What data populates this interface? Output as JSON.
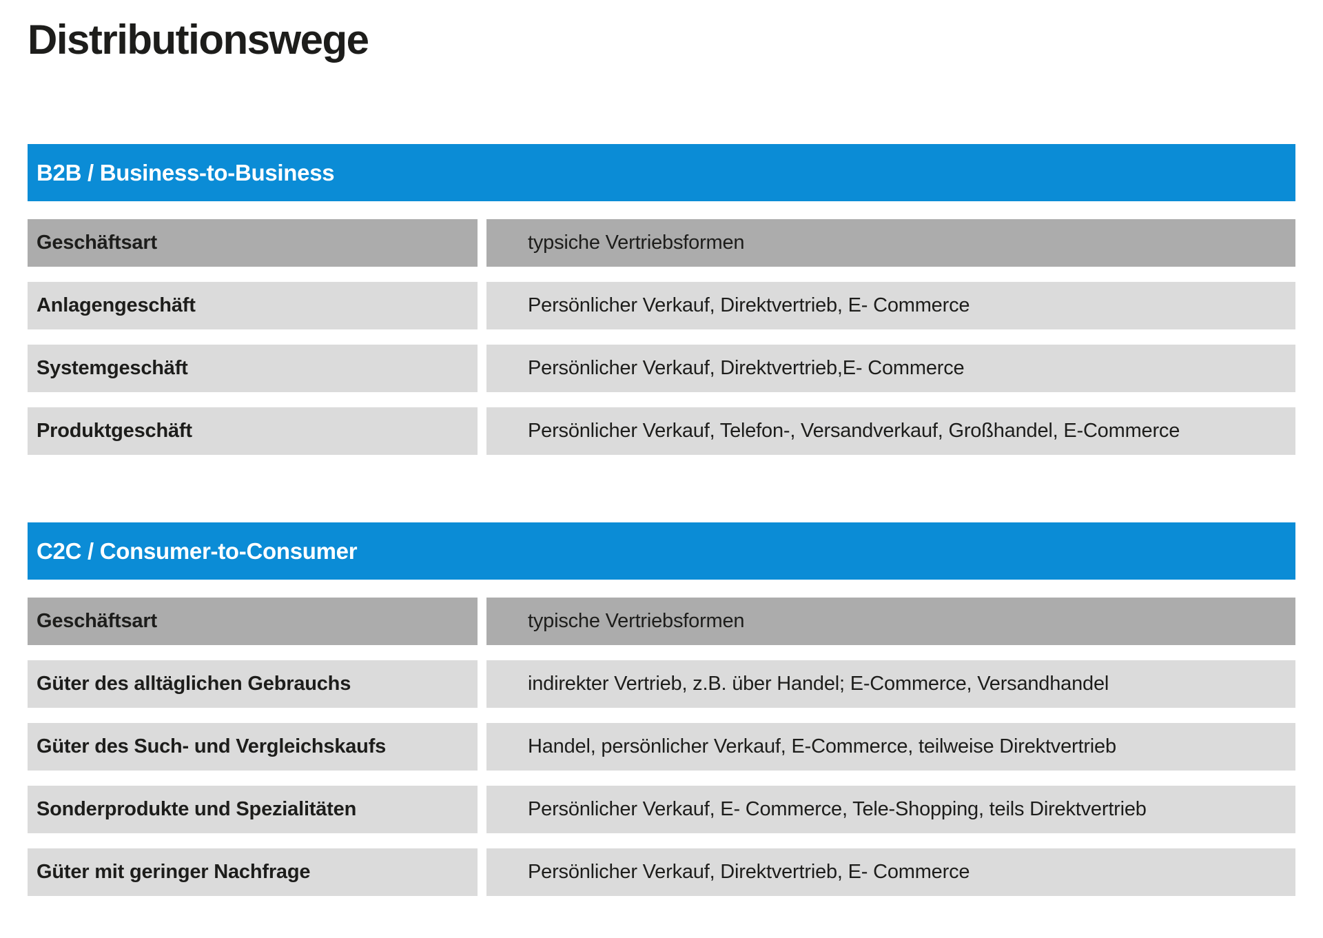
{
  "title": "Distributionswege",
  "colors": {
    "accent_blue": "#0b8cd6",
    "header_row_gray": "#acacac",
    "data_row_gray": "#dbdbdb",
    "text_black": "#1d1d1b",
    "bar_text_white": "#ffffff"
  },
  "sections": [
    {
      "header": "B2B / Business-to-Business",
      "col1_header": "Geschäftsart",
      "col2_header": "typsiche Vertriebsformen",
      "rows": [
        {
          "label": "Anlagengeschäft",
          "value": "Persönlicher Verkauf, Direktvertrieb, E- Commerce"
        },
        {
          "label": "Systemgeschäft",
          "value": "Persönlicher Verkauf, Direktvertrieb,E- Commerce"
        },
        {
          "label": "Produktgeschäft",
          "value": "Persönlicher Verkauf, Telefon-, Versandverkauf, Großhandel, E-Commerce"
        }
      ]
    },
    {
      "header": "C2C / Consumer-to-Consumer",
      "col1_header": "Geschäftsart",
      "col2_header": "typische Vertriebsformen",
      "rows": [
        {
          "label": "Güter des alltäglichen Gebrauchs",
          "value": "indirekter Vertrieb, z.B. über Handel; E-Commerce, Versandhandel"
        },
        {
          "label": "Güter des Such- und Vergleichskaufs",
          "value": "Handel, persönlicher Verkauf, E-Commerce, teilweise Direktvertrieb"
        },
        {
          "label": "Sonderprodukte und Spezialitäten",
          "value": "Persönlicher Verkauf, E- Commerce, Tele-Shopping, teils Direktvertrieb"
        },
        {
          "label": "Güter mit geringer Nachfrage",
          "value": "Persönlicher Verkauf, Direktvertrieb, E- Commerce"
        }
      ]
    }
  ]
}
